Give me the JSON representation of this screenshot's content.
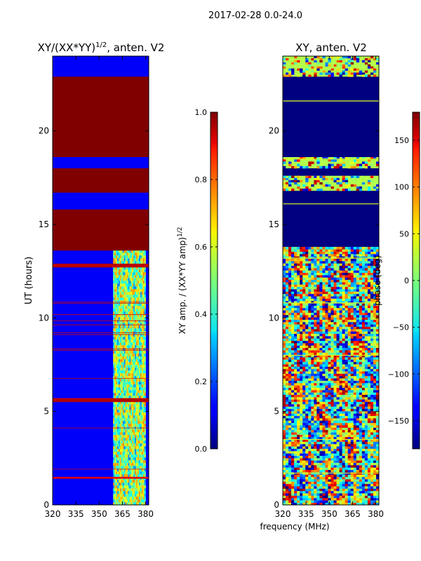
{
  "chart_data": {
    "type": "heatmap",
    "suptitle": "2017-02-28 0.0-24.0",
    "xlabel": "frequency (MHz)",
    "panels": [
      {
        "title": "XY/(XX*YY)",
        "title_exponent": "1/2",
        "title_suffix": ", anten. V2",
        "ylabel": "UT (hours)",
        "xlim": [
          320,
          382
        ],
        "ylim": [
          0,
          24
        ],
        "xticks": [
          "320",
          "335",
          "350",
          "365",
          "380"
        ],
        "yticks": [
          "0",
          "5",
          "10",
          "15",
          "20"
        ],
        "colorbar": {
          "label": "XY amp. / (XX*YY amp)",
          "label_exponent": "1/2",
          "range": [
            0.0,
            1.0
          ],
          "ticks": [
            "0.0",
            "0.2",
            "0.4",
            "0.6",
            "0.8",
            "1.0"
          ]
        },
        "bands_hours": [
          {
            "from": 18.6,
            "to": 22.9,
            "value": 1.0
          },
          {
            "from": 16.7,
            "to": 18.0,
            "value": 1.0
          },
          {
            "from": 13.6,
            "to": 15.8,
            "value": 1.0
          },
          {
            "from": 12.7,
            "to": 12.9,
            "value": 0.95
          },
          {
            "from": 5.5,
            "to": 5.7,
            "value": 0.95
          },
          {
            "from": 1.4,
            "to": 1.5,
            "value": 0.9
          }
        ],
        "active_freq_range_mhz": [
          359,
          380
        ]
      },
      {
        "title": "XY, anten. V2",
        "ylabel": "",
        "xlim": [
          320,
          382
        ],
        "ylim": [
          0,
          24
        ],
        "xticks": [
          "320",
          "335",
          "350",
          "365",
          "380"
        ],
        "yticks": [
          "0",
          "5",
          "10",
          "15",
          "20"
        ],
        "colorbar": {
          "label": "phase (deg)",
          "range": [
            -180,
            180
          ],
          "ticks": [
            "150",
            "100",
            "50",
            "0",
            "−50",
            "−100",
            "−150"
          ],
          "tick_values": [
            150,
            100,
            50,
            0,
            -50,
            -100,
            -150
          ]
        },
        "bands_hours": [
          {
            "from": 16.8,
            "to": 17.6,
            "value": 0.0
          },
          {
            "from": 18.0,
            "to": 18.6,
            "value": 0.0
          },
          {
            "from": 22.9,
            "to": 24.0,
            "value": 0.0
          }
        ],
        "noisy_region_hours": [
          0,
          13.8
        ]
      }
    ]
  }
}
